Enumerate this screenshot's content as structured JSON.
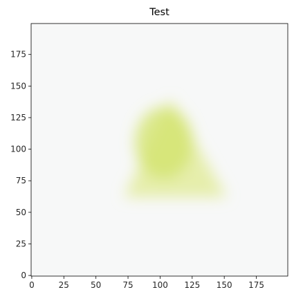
{
  "chart_data": {
    "type": "heatmap",
    "title": "Test",
    "xlabel": "",
    "ylabel": "",
    "xlim": [
      -0.5,
      199.5
    ],
    "ylim": [
      199.5,
      -0.5
    ],
    "y_inverted": true,
    "grid": false,
    "x_ticks": [
      0,
      25,
      50,
      75,
      100,
      125,
      150,
      175
    ],
    "y_ticks": [
      0,
      25,
      50,
      75,
      100,
      125,
      150,
      175
    ],
    "colors": {
      "background": "#f7f8f8",
      "highlight": "#d2e36a",
      "mid": "#e3ec9e",
      "frame": "#000000"
    }
  }
}
